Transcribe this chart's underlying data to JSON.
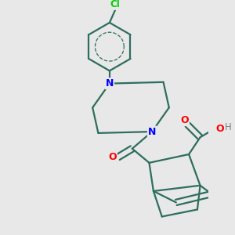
{
  "bg_color": "#e8e8e8",
  "bond_color": "#2d6e5e",
  "nitrogen_color": "#0000ff",
  "oxygen_color": "#ff0000",
  "chlorine_color": "#00cc00",
  "hydrogen_color": "#808080",
  "figsize": [
    3.0,
    3.0
  ],
  "dpi": 100,
  "xlim": [
    -0.55,
    0.75
  ],
  "ylim": [
    -0.75,
    0.85
  ]
}
